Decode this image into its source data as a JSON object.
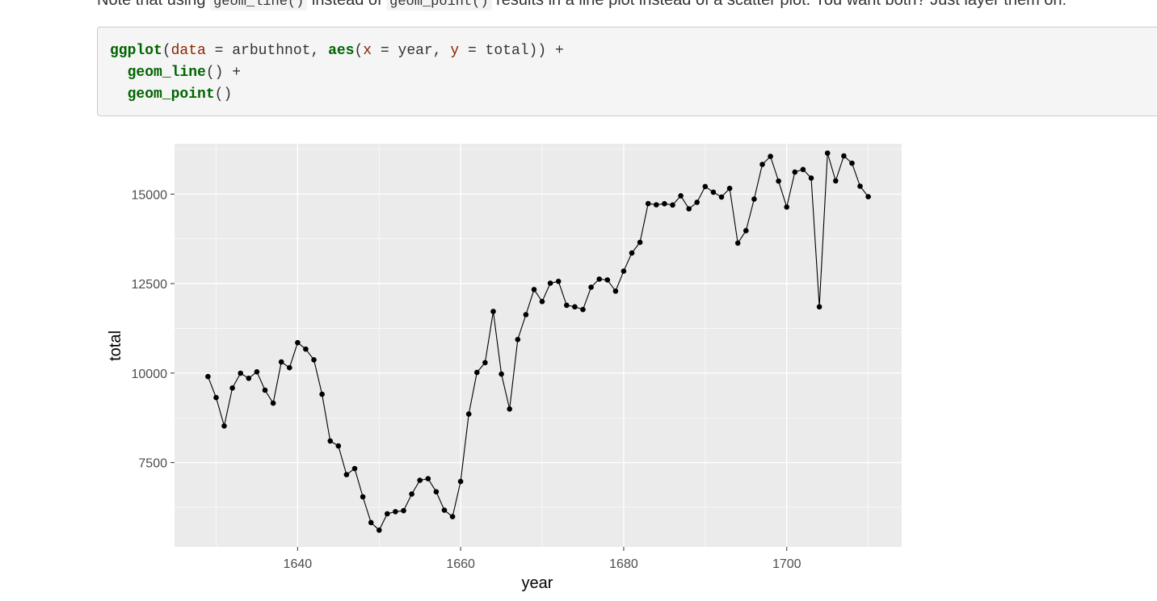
{
  "prose": {
    "p1": "Note that using ",
    "c1": "geom_line()",
    "p2": " instead of ",
    "c2": "geom_point()",
    "p3": " results in a line plot instead of a scatter plot. You want both? Just layer them on:"
  },
  "code": {
    "l1_fn": "ggplot",
    "l1_a": "(",
    "l1_arg1": "data",
    "l1_b": " = arbuthnot, ",
    "l1_fn2": "aes",
    "l1_c": "(",
    "l1_arg2": "x",
    "l1_d": " = year, ",
    "l1_arg3": "y",
    "l1_e": " = total)) +",
    "l2_fn": "geom_line",
    "l2_rest": "() +",
    "l3_fn": "geom_point",
    "l3_rest": "()"
  },
  "chart_data": {
    "type": "line",
    "xlabel": "year",
    "ylabel": "total",
    "xlim": [
      1624.9,
      1714.1
    ],
    "ylim": [
      5145,
      16405
    ],
    "x_ticks": [
      1640,
      1660,
      1680,
      1700
    ],
    "x_tick_labels": [
      "1640",
      "1660",
      "1680",
      "1700"
    ],
    "y_ticks": [
      7500,
      10000,
      12500,
      15000
    ],
    "y_tick_labels": [
      "7500",
      "10000",
      "12500",
      "15000"
    ],
    "grid": true,
    "points": true,
    "colors": {
      "panel": "#ebebeb",
      "grid": "#ffffff",
      "line": "#000000",
      "axis_text": "#4d4d4d"
    },
    "x": [
      1629,
      1630,
      1631,
      1632,
      1633,
      1634,
      1635,
      1636,
      1637,
      1638,
      1639,
      1640,
      1641,
      1642,
      1643,
      1644,
      1645,
      1646,
      1647,
      1648,
      1649,
      1650,
      1651,
      1652,
      1653,
      1654,
      1655,
      1656,
      1657,
      1658,
      1659,
      1660,
      1661,
      1662,
      1663,
      1664,
      1665,
      1666,
      1667,
      1668,
      1669,
      1670,
      1671,
      1672,
      1673,
      1674,
      1675,
      1676,
      1677,
      1678,
      1679,
      1680,
      1681,
      1682,
      1683,
      1684,
      1685,
      1686,
      1687,
      1688,
      1689,
      1690,
      1691,
      1692,
      1693,
      1694,
      1695,
      1696,
      1697,
      1698,
      1699,
      1700,
      1701,
      1702,
      1703,
      1704,
      1705,
      1706,
      1707,
      1708,
      1709,
      1710
    ],
    "y": [
      9901,
      9315,
      8524,
      9584,
      9997,
      9855,
      10034,
      9522,
      9160,
      10311,
      10150,
      10850,
      10670,
      10370,
      9410,
      8104,
      7966,
      7163,
      7332,
      6544,
      5825,
      5612,
      6071,
      6128,
      6155,
      6620,
      7004,
      7050,
      6685,
      6170,
      5990,
      6971,
      8855,
      10019,
      10292,
      11722,
      9972,
      8997,
      10938,
      11633,
      12335,
      11997,
      12510,
      12563,
      11895,
      11851,
      11775,
      12399,
      12626,
      12601,
      12288,
      12847,
      13355,
      13653,
      14735,
      14702,
      14730,
      14694,
      14951,
      14588,
      14771,
      15211,
      15054,
      14918,
      15159,
      13632,
      13976,
      14861,
      15829,
      16052,
      15363,
      14639,
      15616,
      15687,
      15448,
      11851,
      16145,
      15369,
      16066,
      15862,
      15220,
      14928
    ]
  }
}
